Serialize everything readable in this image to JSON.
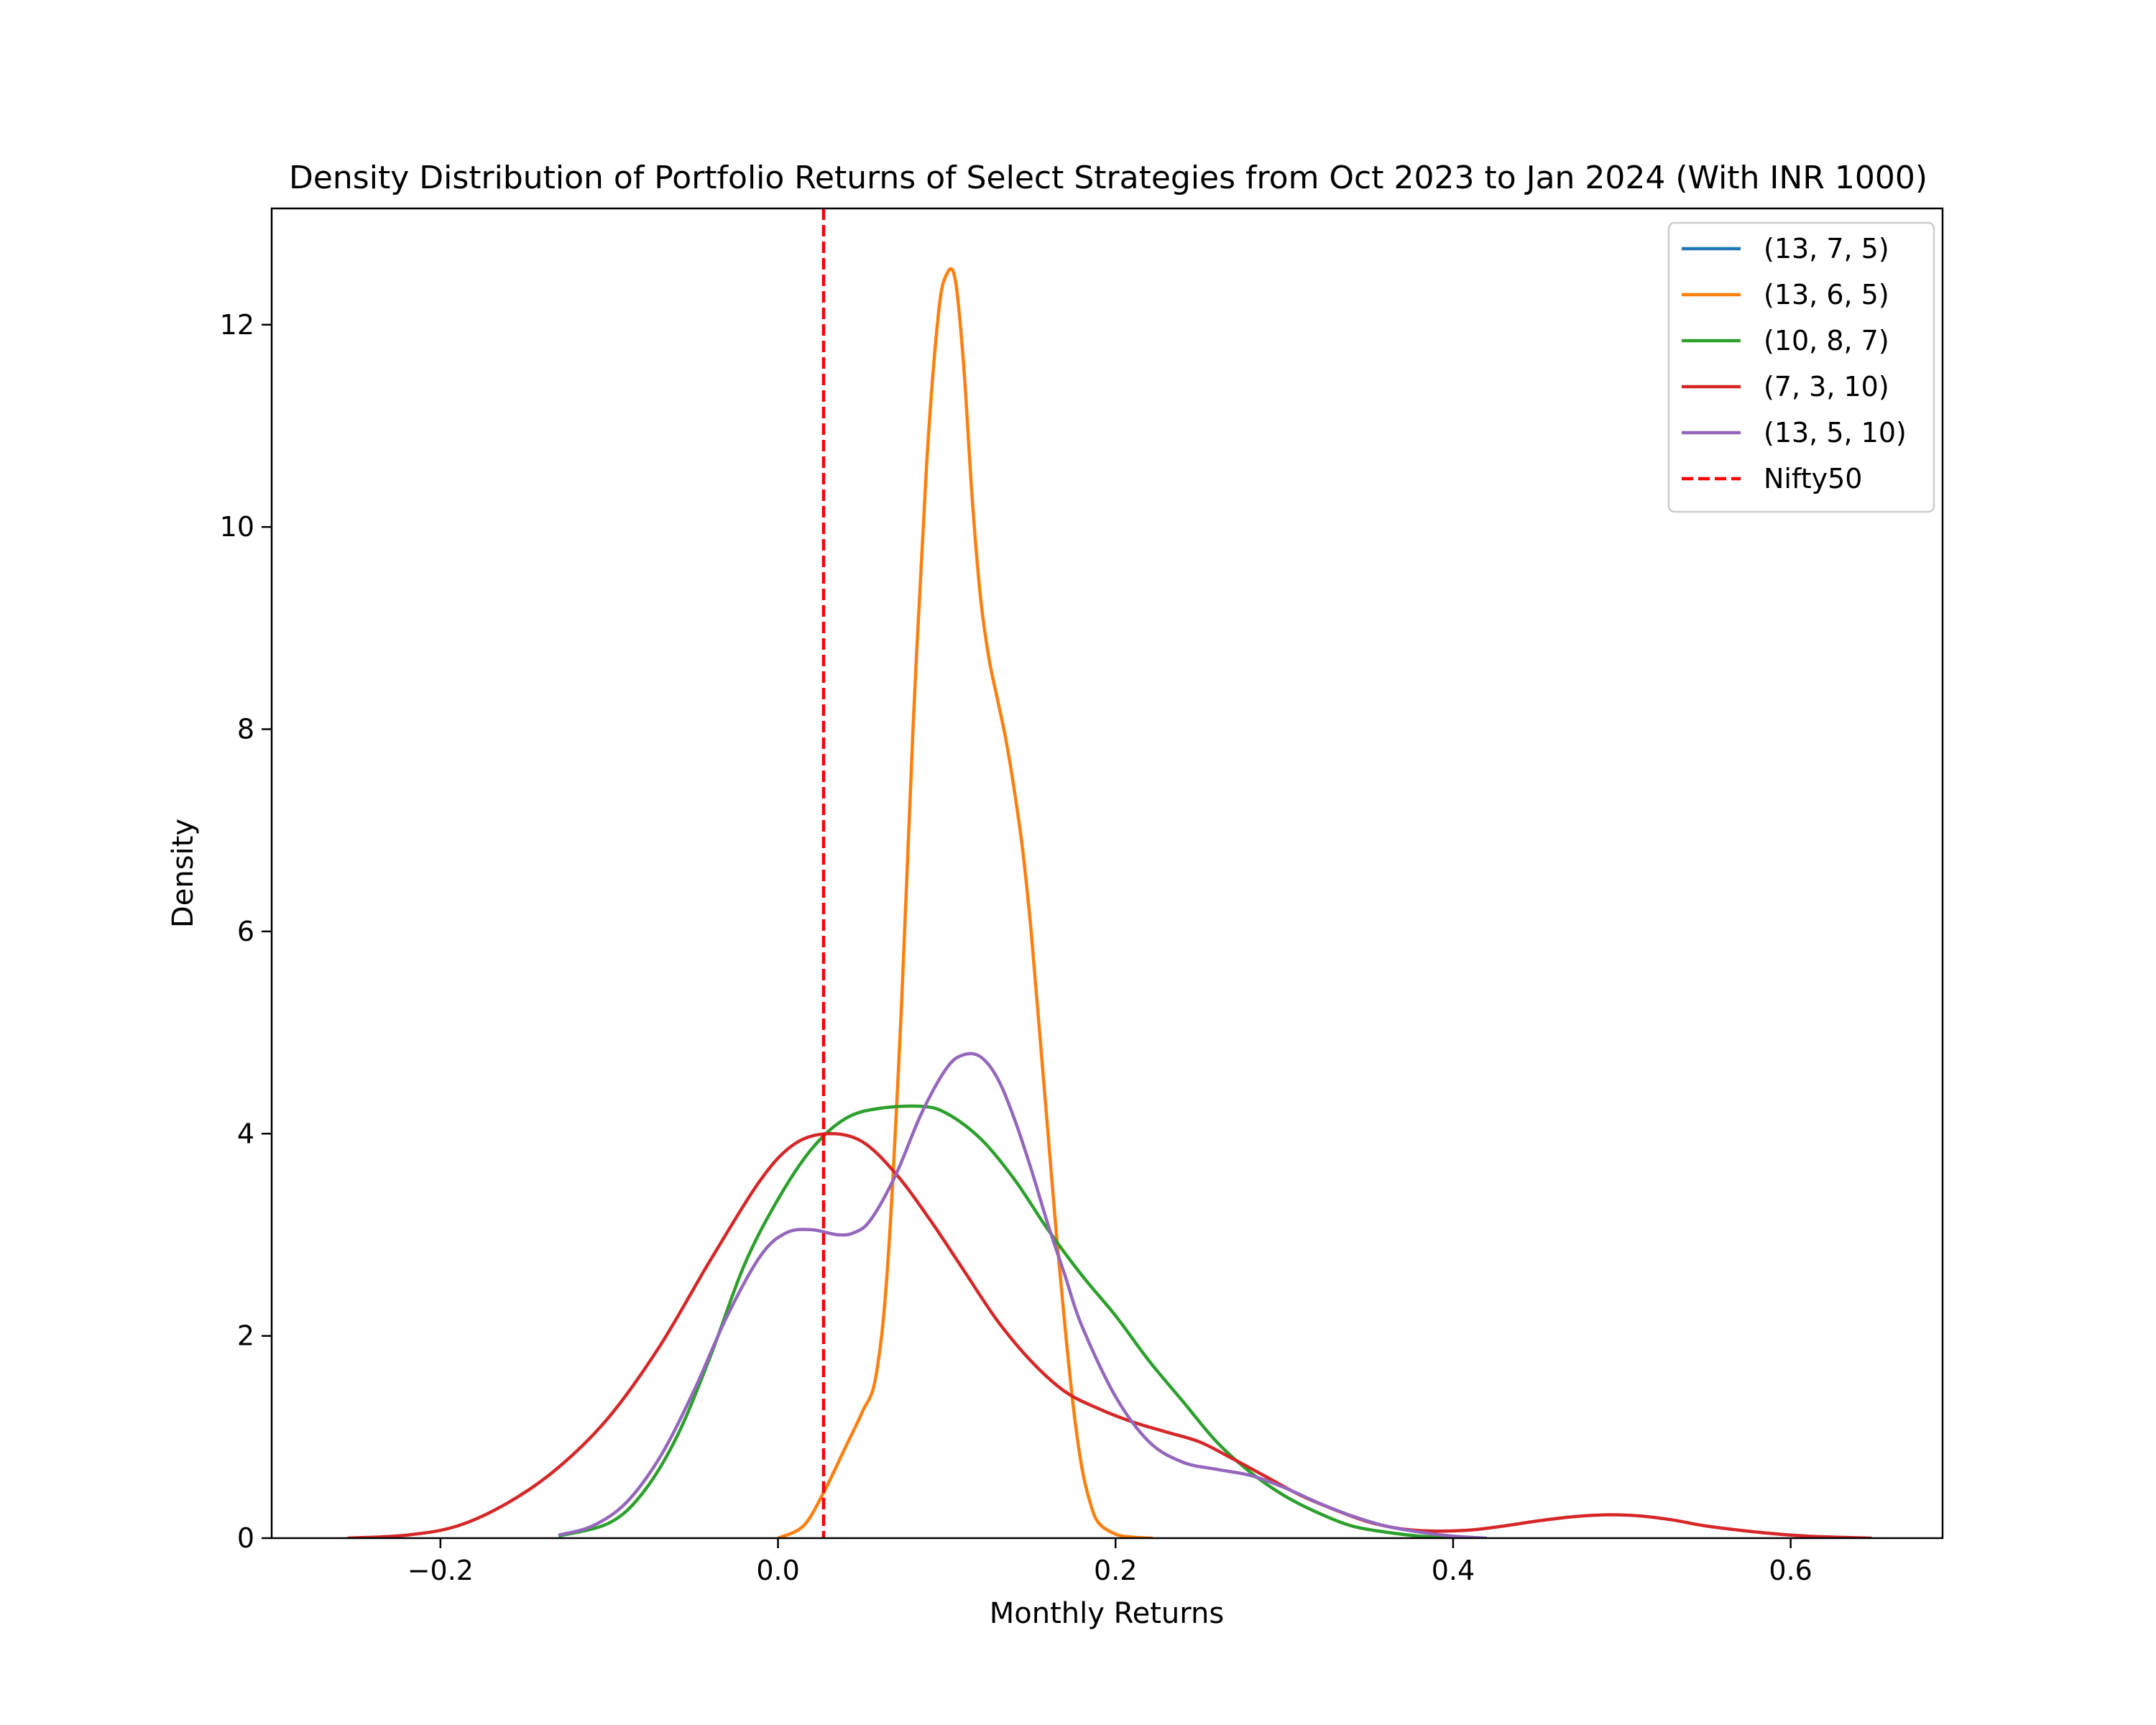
{
  "chart_data": {
    "type": "line",
    "title": "Density Distribution of Portfolio Returns of Select Strategies from Oct 2023 to Jan 2024 (With INR 1000)",
    "xlabel": "Monthly Returns",
    "ylabel": "Density",
    "xlim": [
      -0.3,
      0.69
    ],
    "ylim": [
      0,
      13.15
    ],
    "xticks": [
      -0.2,
      0.0,
      0.2,
      0.4,
      0.6
    ],
    "xtick_labels": [
      "−0.2",
      "0.0",
      "0.2",
      "0.4",
      "0.6"
    ],
    "yticks": [
      0,
      2,
      4,
      6,
      8,
      10,
      12
    ],
    "ytick_labels": [
      "0",
      "2",
      "4",
      "6",
      "8",
      "10",
      "12"
    ],
    "grid": false,
    "legend_position": "upper right",
    "series": [
      {
        "name": "(13, 7, 5)",
        "color": "#1f77b4",
        "style": "solid",
        "x": [],
        "y": []
      },
      {
        "name": "(13, 6, 5)",
        "color": "#ff7f0e",
        "style": "solid",
        "x": [
          0.0,
          0.015,
          0.027,
          0.04,
          0.05,
          0.058,
          0.065,
          0.073,
          0.08,
          0.088,
          0.095,
          0.1,
          0.105,
          0.11,
          0.115,
          0.12,
          0.125,
          0.13,
          0.135,
          0.14,
          0.145,
          0.15,
          0.155,
          0.16,
          0.165,
          0.17,
          0.175,
          0.18,
          0.185,
          0.19,
          0.2,
          0.21,
          0.222
        ],
        "y": [
          0.0,
          0.12,
          0.45,
          0.9,
          1.25,
          1.6,
          2.7,
          5.2,
          8.0,
          10.6,
          12.1,
          12.5,
          12.45,
          11.6,
          10.3,
          9.3,
          8.7,
          8.3,
          7.9,
          7.4,
          6.8,
          6.0,
          5.0,
          4.0,
          3.0,
          2.1,
          1.3,
          0.7,
          0.35,
          0.15,
          0.04,
          0.01,
          0.0
        ]
      },
      {
        "name": "(10, 8, 7)",
        "color": "#2ca02c",
        "style": "solid",
        "x": [
          -0.13,
          -0.1,
          -0.08,
          -0.06,
          -0.04,
          -0.02,
          0.0,
          0.02,
          0.04,
          0.06,
          0.085,
          0.1,
          0.12,
          0.14,
          0.16,
          0.18,
          0.2,
          0.22,
          0.24,
          0.26,
          0.28,
          0.3,
          0.32,
          0.34,
          0.36,
          0.38,
          0.4
        ],
        "y": [
          0.02,
          0.15,
          0.45,
          1.0,
          1.8,
          2.7,
          3.35,
          3.85,
          4.15,
          4.25,
          4.27,
          4.2,
          3.95,
          3.55,
          3.05,
          2.6,
          2.2,
          1.75,
          1.35,
          0.95,
          0.65,
          0.42,
          0.25,
          0.12,
          0.06,
          0.02,
          0.0
        ]
      },
      {
        "name": "(7, 3, 10)",
        "color": "#d62728",
        "style": "solid",
        "x": [
          -0.255,
          -0.22,
          -0.19,
          -0.16,
          -0.13,
          -0.1,
          -0.07,
          -0.04,
          -0.01,
          0.01,
          0.03,
          0.05,
          0.07,
          0.09,
          0.11,
          0.13,
          0.15,
          0.17,
          0.19,
          0.21,
          0.23,
          0.25,
          0.27,
          0.29,
          0.31,
          0.33,
          0.35,
          0.37,
          0.39,
          0.41,
          0.43,
          0.45,
          0.47,
          0.49,
          0.51,
          0.53,
          0.55,
          0.58,
          0.61,
          0.648
        ],
        "y": [
          0.0,
          0.03,
          0.12,
          0.35,
          0.7,
          1.2,
          1.9,
          2.75,
          3.55,
          3.9,
          4.0,
          3.92,
          3.6,
          3.15,
          2.65,
          2.15,
          1.75,
          1.45,
          1.28,
          1.15,
          1.05,
          0.95,
          0.78,
          0.6,
          0.42,
          0.28,
          0.16,
          0.09,
          0.07,
          0.08,
          0.12,
          0.17,
          0.21,
          0.23,
          0.22,
          0.18,
          0.12,
          0.06,
          0.02,
          0.0
        ]
      },
      {
        "name": "(13, 5, 10)",
        "color": "#9467bd",
        "style": "solid",
        "x": [
          -0.13,
          -0.11,
          -0.09,
          -0.07,
          -0.05,
          -0.03,
          -0.01,
          0.005,
          0.02,
          0.035,
          0.045,
          0.055,
          0.07,
          0.085,
          0.1,
          0.11,
          0.12,
          0.13,
          0.14,
          0.15,
          0.16,
          0.17,
          0.18,
          0.2,
          0.22,
          0.24,
          0.26,
          0.28,
          0.3,
          0.32,
          0.34,
          0.36,
          0.38,
          0.4,
          0.42
        ],
        "y": [
          0.03,
          0.12,
          0.35,
          0.8,
          1.45,
          2.2,
          2.8,
          3.02,
          3.05,
          3.0,
          3.02,
          3.15,
          3.6,
          4.2,
          4.65,
          4.78,
          4.76,
          4.55,
          4.15,
          3.65,
          3.1,
          2.6,
          2.1,
          1.4,
          0.95,
          0.75,
          0.68,
          0.62,
          0.5,
          0.35,
          0.22,
          0.12,
          0.06,
          0.02,
          0.0
        ]
      }
    ],
    "reference_lines": [
      {
        "name": "Nifty50",
        "x": 0.027,
        "color": "#ff0000",
        "style": "dashed"
      }
    ]
  }
}
